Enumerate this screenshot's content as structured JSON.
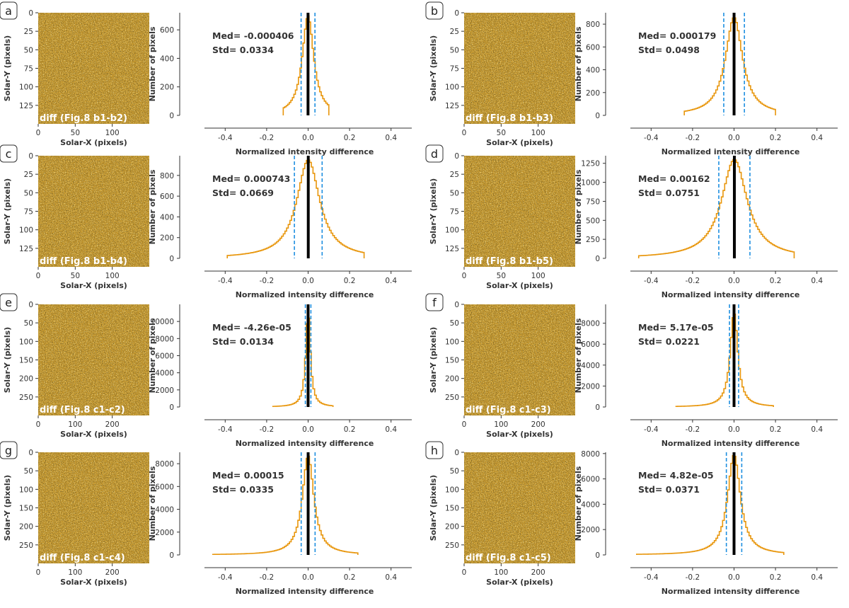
{
  "figure": {
    "common": {
      "img_xlabel": "Solar-X (pixels)",
      "img_ylabel": "Solar-Y (pixels)",
      "hist_xlabel": "Normalized intensity difference",
      "hist_ylabel": "Number of pixels",
      "hist_xticks": [
        "-0.4",
        "-0.2",
        "0.0",
        "0.2",
        "0.4"
      ],
      "colors": {
        "hist": "#e8960c",
        "median": "#000000",
        "std": "#1e8fe0",
        "text": "#333333",
        "image_base": "#c99a2e"
      }
    },
    "panels": [
      {
        "letter": "a",
        "img_label": "diff (Fig.8 b1-b2)",
        "img_yticks": [
          "0",
          "25",
          "50",
          "75",
          "100",
          "125"
        ],
        "img_xticks": [
          "0",
          "50",
          "100"
        ],
        "med_text": "Med= -0.000406",
        "std_text": "Std= 0.0334",
        "hist_yticks": [
          "0",
          "200",
          "400",
          "600"
        ]
      },
      {
        "letter": "b",
        "img_label": "diff (Fig.8 b1-b3)",
        "img_yticks": [
          "0",
          "25",
          "50",
          "75",
          "100",
          "125"
        ],
        "img_xticks": [
          "0",
          "50",
          "100"
        ],
        "med_text": "Med= 0.000179",
        "std_text": "Std= 0.0498",
        "hist_yticks": [
          "0",
          "200",
          "400",
          "600",
          "800"
        ]
      },
      {
        "letter": "c",
        "img_label": "diff (Fig.8 b1-b4)",
        "img_yticks": [
          "0",
          "25",
          "50",
          "75",
          "100",
          "125"
        ],
        "img_xticks": [
          "0",
          "50",
          "100"
        ],
        "med_text": "Med= 0.000743",
        "std_text": "Std= 0.0669",
        "hist_yticks": [
          "0",
          "200",
          "400",
          "600",
          "800"
        ]
      },
      {
        "letter": "d",
        "img_label": "diff (Fig.8 b1-b5)",
        "img_yticks": [
          "0",
          "25",
          "50",
          "75",
          "100",
          "125"
        ],
        "img_xticks": [
          "0",
          "50",
          "100"
        ],
        "med_text": "Med= 0.00162",
        "std_text": "Std= 0.0751",
        "hist_yticks": [
          "0",
          "250",
          "500",
          "750",
          "1000",
          "1250"
        ]
      },
      {
        "letter": "e",
        "img_label": "diff (Fig.8 c1-c2)",
        "img_yticks": [
          "0",
          "50",
          "100",
          "150",
          "200",
          "250"
        ],
        "img_xticks": [
          "0",
          "100",
          "200"
        ],
        "med_text": "Med= -4.26e-05",
        "std_text": "Std= 0.0134",
        "hist_yticks": [
          "0",
          "2000",
          "4000",
          "6000",
          "8000",
          "10000"
        ]
      },
      {
        "letter": "f",
        "img_label": "diff (Fig.8 c1-c3)",
        "img_yticks": [
          "0",
          "50",
          "100",
          "150",
          "200",
          "250"
        ],
        "img_xticks": [
          "0",
          "100",
          "200"
        ],
        "med_text": "Med= 5.17e-05",
        "std_text": "Std= 0.0221",
        "hist_yticks": [
          "0",
          "2000",
          "4000",
          "6000",
          "8000"
        ]
      },
      {
        "letter": "g",
        "img_label": "diff (Fig.8 c1-c4)",
        "img_yticks": [
          "0",
          "50",
          "100",
          "150",
          "200",
          "250"
        ],
        "img_xticks": [
          "0",
          "100",
          "200"
        ],
        "med_text": "Med= 0.00015",
        "std_text": "Std= 0.0335",
        "hist_yticks": [
          "0",
          "2000",
          "4000",
          "6000",
          "8000"
        ]
      },
      {
        "letter": "h",
        "img_label": "diff (Fig.8 c1-c5)",
        "img_yticks": [
          "0",
          "50",
          "100",
          "150",
          "200",
          "250"
        ],
        "img_xticks": [
          "0",
          "100",
          "200"
        ],
        "med_text": "Med= 4.82e-05",
        "std_text": "Std= 0.0371",
        "hist_yticks": [
          "0",
          "2000",
          "4000",
          "6000",
          "8000"
        ]
      }
    ]
  },
  "chart_data": [
    {
      "panel": "a",
      "type": "histogram",
      "xlabel": "Normalized intensity difference",
      "ylabel": "Number of pixels",
      "xlim": [
        -0.5,
        0.5
      ],
      "ylim": [
        0,
        720
      ],
      "median": -0.000406,
      "std": 0.0334,
      "peak": 700,
      "range": [
        -0.12,
        0.1
      ],
      "std_lines": [
        -0.0338,
        0.033
      ]
    },
    {
      "panel": "b",
      "type": "histogram",
      "xlabel": "Normalized intensity difference",
      "ylabel": "Number of pixels",
      "xlim": [
        -0.5,
        0.5
      ],
      "ylim": [
        0,
        900
      ],
      "median": 0.000179,
      "std": 0.0498,
      "peak": 860,
      "range": [
        -0.24,
        0.2
      ],
      "std_lines": [
        -0.0496,
        0.05
      ]
    },
    {
      "panel": "c",
      "type": "histogram",
      "xlabel": "Normalized intensity difference",
      "ylabel": "Number of pixels",
      "xlim": [
        -0.5,
        0.5
      ],
      "ylim": [
        0,
        990
      ],
      "median": 0.000743,
      "std": 0.0669,
      "peak": 950,
      "range": [
        -0.39,
        0.27
      ],
      "std_lines": [
        -0.0662,
        0.0676
      ]
    },
    {
      "panel": "d",
      "type": "histogram",
      "xlabel": "Normalized intensity difference",
      "ylabel": "Number of pixels",
      "xlim": [
        -0.5,
        0.5
      ],
      "ylim": [
        0,
        1350
      ],
      "median": 0.00162,
      "std": 0.0751,
      "peak": 1300,
      "range": [
        -0.46,
        0.29
      ],
      "std_lines": [
        -0.0735,
        0.0767
      ]
    },
    {
      "panel": "e",
      "type": "histogram",
      "xlabel": "Normalized intensity difference",
      "ylabel": "Number of pixels",
      "xlim": [
        -0.5,
        0.5
      ],
      "ylim": [
        0,
        12000
      ],
      "median": -4.26e-05,
      "std": 0.0134,
      "peak": 11000,
      "range": [
        -0.17,
        0.12
      ],
      "std_lines": [
        -0.0134,
        0.0134
      ]
    },
    {
      "panel": "f",
      "type": "histogram",
      "xlabel": "Normalized intensity difference",
      "ylabel": "Number of pixels",
      "xlim": [
        -0.5,
        0.5
      ],
      "ylim": [
        0,
        9800
      ],
      "median": 5.17e-05,
      "std": 0.0221,
      "peak": 9000,
      "range": [
        -0.28,
        0.19
      ],
      "std_lines": [
        -0.022,
        0.0222
      ]
    },
    {
      "panel": "g",
      "type": "histogram",
      "xlabel": "Normalized intensity difference",
      "ylabel": "Number of pixels",
      "xlim": [
        -0.5,
        0.5
      ],
      "ylim": [
        0,
        9000
      ],
      "median": 0.00015,
      "std": 0.0335,
      "peak": 8700,
      "range": [
        -0.46,
        0.24
      ],
      "std_lines": [
        -0.0334,
        0.0336
      ]
    },
    {
      "panel": "h",
      "type": "histogram",
      "xlabel": "Normalized intensity difference",
      "ylabel": "Number of pixels",
      "xlim": [
        -0.5,
        0.5
      ],
      "ylim": [
        0,
        8100
      ],
      "median": 4.82e-05,
      "std": 0.0371,
      "peak": 7900,
      "range": [
        -0.47,
        0.24
      ],
      "std_lines": [
        -0.037,
        0.0372
      ]
    }
  ]
}
